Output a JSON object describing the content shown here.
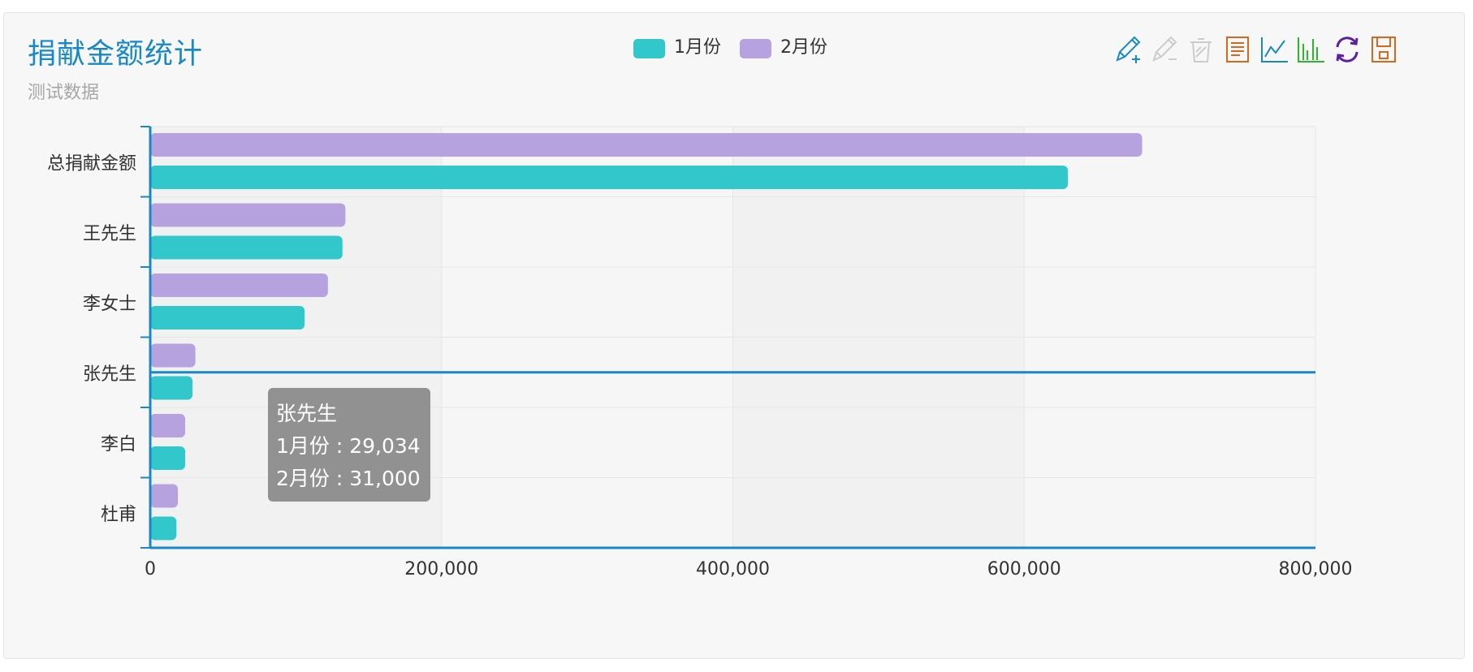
{
  "colors": {
    "series_jan": "#32c8cb",
    "series_feb": "#b6a2de",
    "accent": "#1888c7"
  },
  "chart_data": {
    "type": "bar",
    "orientation": "horizontal",
    "title": "捐献金额统计",
    "subtitle": "测试数据",
    "categories": [
      "总捐献金额",
      "王先生",
      "李女士",
      "张先生",
      "李白",
      "杜甫"
    ],
    "series": [
      {
        "name": "1月份",
        "values": [
          630000,
          132000,
          106000,
          29034,
          24000,
          18000
        ]
      },
      {
        "name": "2月份",
        "values": [
          681000,
          134000,
          122000,
          31000,
          24000,
          19000
        ]
      }
    ],
    "x_ticks": [
      "0",
      "200,000",
      "400,000",
      "600,000",
      "800,000"
    ],
    "xlim": [
      0,
      800000
    ],
    "grid": true,
    "legend_position": "top-center"
  },
  "toolbox": {
    "icons": [
      "pencil-add-icon",
      "pencil-remove-icon",
      "erase-icon",
      "data-view-icon",
      "line-chart-icon",
      "bar-chart-icon",
      "refresh-icon",
      "save-icon"
    ]
  },
  "tooltip": {
    "title": "张先生",
    "line1": "1月份 : 29,034",
    "line2": "2月份 : 31,000"
  }
}
